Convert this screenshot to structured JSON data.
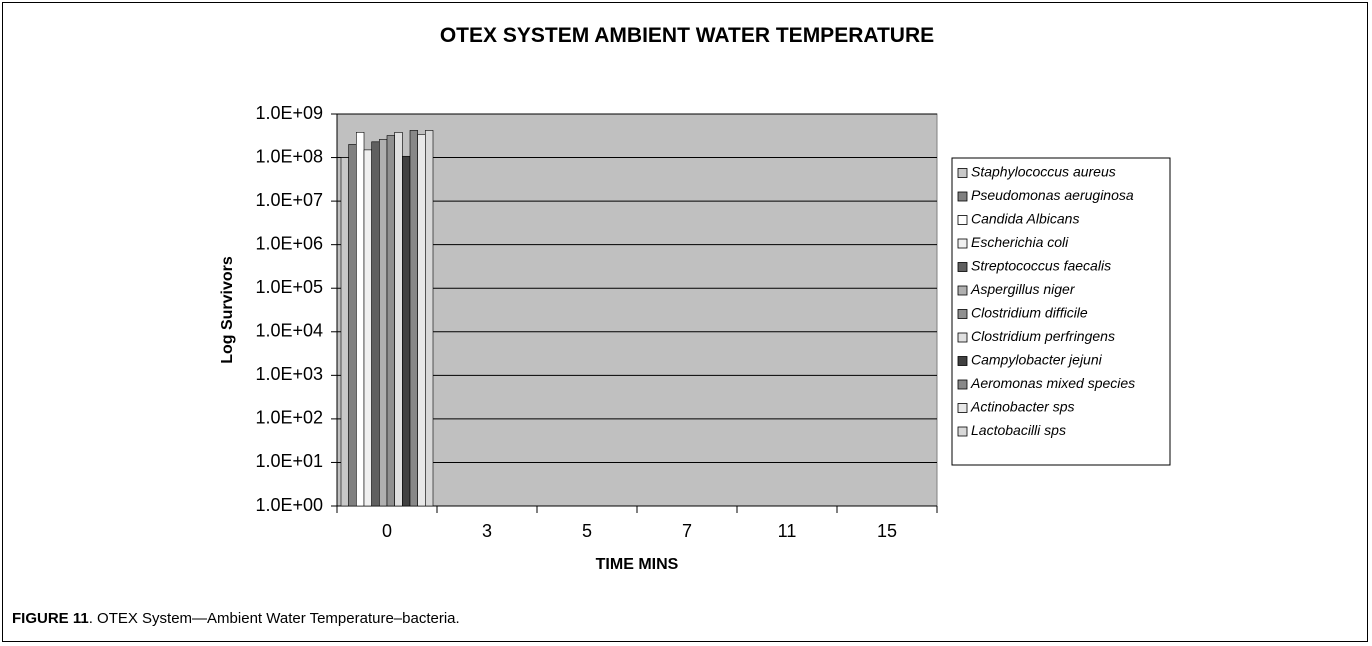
{
  "chart_data": {
    "type": "bar",
    "title": "OTEX SYSTEM AMBIENT WATER TEMPERATURE",
    "xlabel": "TIME MINS",
    "ylabel": "Log Survivors",
    "categories": [
      "0",
      "3",
      "5",
      "7",
      "11",
      "15"
    ],
    "log_scale": true,
    "grid": true,
    "legend": "right",
    "plot_background": "#c0c0c0",
    "ylim": [
      1,
      1000000000
    ],
    "yticks": [
      {
        "value": 1,
        "label": "1.0E+00"
      },
      {
        "value": 10,
        "label": "1.0E+01"
      },
      {
        "value": 100,
        "label": "1.0E+02"
      },
      {
        "value": 1000,
        "label": "1.0E+03"
      },
      {
        "value": 10000,
        "label": "1.0E+04"
      },
      {
        "value": 100000,
        "label": "1.0E+05"
      },
      {
        "value": 1000000,
        "label": "1.0E+06"
      },
      {
        "value": 10000000,
        "label": "1.0E+07"
      },
      {
        "value": 100000000,
        "label": "1.0E+08"
      },
      {
        "value": 1000000000,
        "label": "1.0E+09"
      }
    ],
    "series": [
      {
        "name": "Staphylococcus aureus",
        "color": "#c8c8c8",
        "values": [
          100000000,
          null,
          null,
          null,
          null,
          null
        ]
      },
      {
        "name": "Pseudomonas aeruginosa",
        "color": "#808080",
        "values": [
          200000000,
          null,
          null,
          null,
          null,
          null
        ]
      },
      {
        "name": "Candida Albicans",
        "color": "#ffffff",
        "values": [
          380000000,
          null,
          null,
          null,
          null,
          null
        ]
      },
      {
        "name": "Escherichia coli",
        "color": "#f0f0f0",
        "values": [
          150000000,
          null,
          null,
          null,
          null,
          null
        ]
      },
      {
        "name": "Streptococcus faecalis",
        "color": "#606060",
        "values": [
          230000000,
          null,
          null,
          null,
          null,
          null
        ]
      },
      {
        "name": "Aspergillus niger",
        "color": "#b0b0b0",
        "values": [
          260000000,
          null,
          null,
          null,
          null,
          null
        ]
      },
      {
        "name": "Clostridium difficile",
        "color": "#909090",
        "values": [
          320000000,
          null,
          null,
          null,
          null,
          null
        ]
      },
      {
        "name": "Clostridium perfringens",
        "color": "#e0e0e0",
        "values": [
          380000000,
          null,
          null,
          null,
          null,
          null
        ]
      },
      {
        "name": "Campylobacter jejuni",
        "color": "#404040",
        "values": [
          107000000,
          null,
          null,
          null,
          null,
          null
        ]
      },
      {
        "name": "Aeromonas mixed species",
        "color": "#888888",
        "values": [
          420000000,
          null,
          null,
          null,
          null,
          null
        ]
      },
      {
        "name": "Actinobacter sps",
        "color": "#e8e8e8",
        "values": [
          340000000,
          null,
          null,
          null,
          null,
          null
        ]
      },
      {
        "name": "Lactobacilli sps",
        "color": "#d8d8d8",
        "values": [
          420000000,
          null,
          null,
          null,
          null,
          null
        ]
      }
    ]
  },
  "caption": {
    "label": "FIGURE 11",
    "text": ".   OTEX System—Ambient Water Temperature–bacteria."
  }
}
